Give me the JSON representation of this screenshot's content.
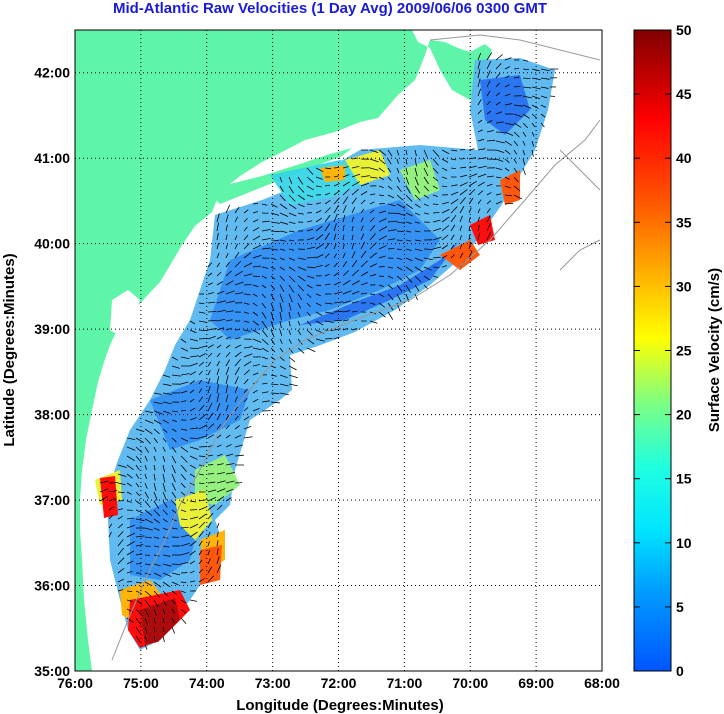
{
  "chart_data": {
    "type": "heatmap",
    "title": "Mid-Atlantic Raw Velocities (1 Day Avg) 2009/06/06 0300 GMT",
    "xlabel": "Longitude (Degrees:Minutes)",
    "ylabel": "Latitude (Degrees:Minutes)",
    "x_ticks": [
      "76:00",
      "75:00",
      "74:00",
      "73:00",
      "72:00",
      "71:00",
      "70:00",
      "69:00",
      "68:00"
    ],
    "y_ticks": [
      "42:00",
      "41:00",
      "40:00",
      "39:00",
      "38:00",
      "37:00",
      "36:00",
      "35:00"
    ],
    "xlim": [
      -76,
      -68
    ],
    "ylim": [
      35,
      42.5
    ],
    "grid": true,
    "colorbar": {
      "label": "Surface Velocity (cm/s)",
      "ticks": [
        "0",
        "5",
        "10",
        "15",
        "20",
        "25",
        "30",
        "35",
        "40",
        "45",
        "50"
      ],
      "range": [
        0,
        50
      ],
      "colormap": "jet"
    },
    "colors": {
      "land": "#5ff5a8",
      "title": "#1a1adb",
      "bathymetry": "#999999",
      "vectors": "#000000"
    }
  }
}
